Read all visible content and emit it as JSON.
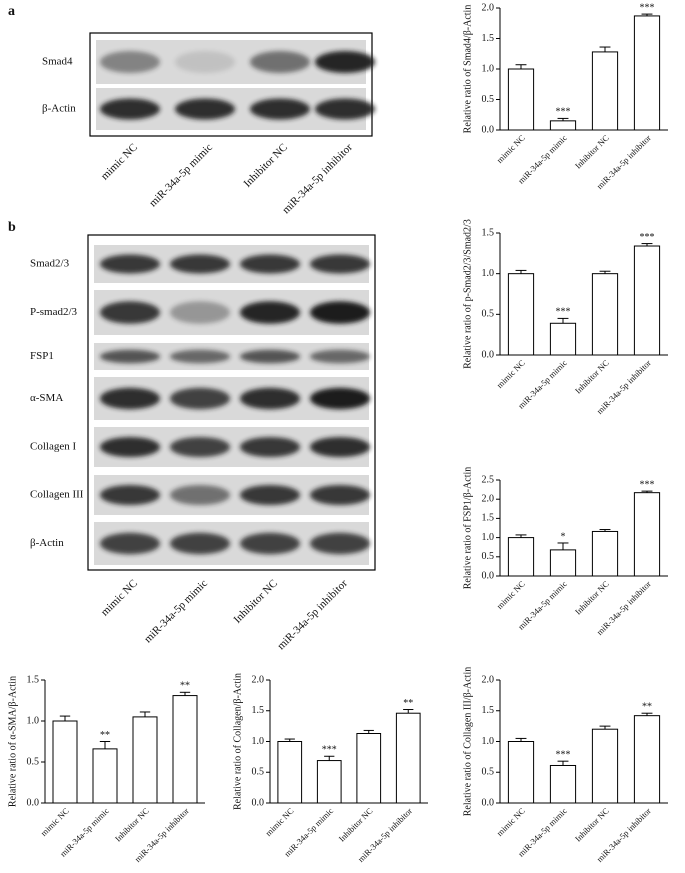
{
  "blots": [
    {
      "label": "a",
      "rows": [
        "Smad4",
        "β-Actin"
      ],
      "lanes": [
        "mimic NC",
        "miR-34a-5p mimic",
        "Inhibitor NC",
        "miR-34a-5p inhibitor"
      ]
    },
    {
      "label": "b",
      "rows": [
        "Smad2/3",
        "P-smad2/3",
        "FSP1",
        "α-SMA",
        "Collagen I",
        "Collagen III",
        "β-Actin"
      ],
      "lanes": [
        "mimic NC",
        "miR-34a-5p mimic",
        "Inhibitor NC",
        "miR-34a-5p inhibitor"
      ]
    }
  ],
  "chart_data": [
    {
      "type": "bar",
      "y_label": "Relative ratio of Smad4/β-Actin",
      "categories": [
        "mimic NC",
        "miR-34a-5p mimic",
        "Inhibitor NC",
        "miR-34a-5p inhibitor"
      ],
      "values": [
        1.0,
        0.15,
        1.28,
        1.87
      ],
      "errors": [
        0.07,
        0.04,
        0.08,
        0.03
      ],
      "significance": [
        null,
        "***",
        null,
        "***"
      ],
      "color": "#ffffff",
      "ylim": [
        0,
        2
      ],
      "yticks": [
        {
          "value": 0,
          "label": "0.0"
        },
        {
          "value": 0.5,
          "label": "0.5"
        },
        {
          "value": 1,
          "label": "1.0"
        },
        {
          "value": 1.5,
          "label": "1.5"
        },
        {
          "value": 2,
          "label": "2.0"
        }
      ]
    },
    {
      "type": "bar",
      "y_label": "Relative ratio of p-Smad2/3/Smad2/3",
      "categories": [
        "mimic NC",
        "miR-34a-5p mimic",
        "Inhibitor NC",
        "miR-34a-5p inhibitor"
      ],
      "values": [
        1.0,
        0.39,
        1.0,
        1.34
      ],
      "errors": [
        0.04,
        0.06,
        0.03,
        0.03
      ],
      "significance": [
        null,
        "***",
        null,
        "***"
      ],
      "color": "#ffffff",
      "ylim": [
        0,
        1.5
      ],
      "yticks": [
        {
          "value": 0,
          "label": "0.0"
        },
        {
          "value": 0.5,
          "label": "0.5"
        },
        {
          "value": 1,
          "label": "1.0"
        },
        {
          "value": 1.5,
          "label": "1.5"
        }
      ]
    },
    {
      "type": "bar",
      "y_label": "Relative ratio of FSP1/β-Actin",
      "categories": [
        "mimic NC",
        "miR-34a-5p mimic",
        "Inhibitor NC",
        "miR-34a-5p inhibitor"
      ],
      "values": [
        1.0,
        0.68,
        1.16,
        2.17
      ],
      "errors": [
        0.07,
        0.18,
        0.05,
        0.04
      ],
      "significance": [
        null,
        "*",
        null,
        "***"
      ],
      "color": "#ffffff",
      "ylim": [
        0,
        2.5
      ],
      "yticks": [
        {
          "value": 0,
          "label": "0.0"
        },
        {
          "value": 0.5,
          "label": "0.5"
        },
        {
          "value": 1,
          "label": "1.0"
        },
        {
          "value": 1.5,
          "label": "1.5"
        },
        {
          "value": 2,
          "label": "2.0"
        },
        {
          "value": 2.5,
          "label": "2.5"
        }
      ]
    },
    {
      "type": "bar",
      "y_label": "Relative ratio of α-SMA/β-Actin",
      "categories": [
        "mimic NC",
        "miR-34a-5p mimic",
        "Inhibitor NC",
        "miR-34a-5p inhibitor"
      ],
      "values": [
        1.0,
        0.66,
        1.05,
        1.31
      ],
      "errors": [
        0.06,
        0.09,
        0.06,
        0.04
      ],
      "significance": [
        null,
        "**",
        null,
        "**"
      ],
      "color": "#ffffff",
      "ylim": [
        0,
        1.5
      ],
      "yticks": [
        {
          "value": 0,
          "label": "0.0"
        },
        {
          "value": 0.5,
          "label": "0.5"
        },
        {
          "value": 1,
          "label": "1.0"
        },
        {
          "value": 1.5,
          "label": "1.5"
        }
      ]
    },
    {
      "type": "bar",
      "y_label": "Relative ratio of Collagen/β-Actin",
      "categories": [
        "mimic NC",
        "miR-34a-5p mimic",
        "Inhibitor NC",
        "miR-34a-5p inhibitor"
      ],
      "values": [
        1.0,
        0.69,
        1.13,
        1.46
      ],
      "errors": [
        0.04,
        0.07,
        0.05,
        0.06
      ],
      "significance": [
        null,
        "***",
        null,
        "**"
      ],
      "color": "#ffffff",
      "ylim": [
        0,
        2
      ],
      "yticks": [
        {
          "value": 0,
          "label": "0.0"
        },
        {
          "value": 0.5,
          "label": "0.5"
        },
        {
          "value": 1,
          "label": "1.0"
        },
        {
          "value": 1.5,
          "label": "1.5"
        },
        {
          "value": 2,
          "label": "2.0"
        }
      ]
    },
    {
      "type": "bar",
      "y_label": "Relative ratio of Collagen III/β-Actin",
      "categories": [
        "mimic NC",
        "miR-34a-5p mimic",
        "Inhibitor NC",
        "miR-34a-5p inhibitor"
      ],
      "values": [
        1.0,
        0.61,
        1.2,
        1.42
      ],
      "errors": [
        0.05,
        0.07,
        0.05,
        0.04
      ],
      "significance": [
        null,
        "***",
        null,
        "**"
      ],
      "color": "#ffffff",
      "ylim": [
        0,
        2
      ],
      "yticks": [
        {
          "value": 0,
          "label": "0.0"
        },
        {
          "value": 0.5,
          "label": "0.5"
        },
        {
          "value": 1,
          "label": "1.0"
        },
        {
          "value": 1.5,
          "label": "1.5"
        },
        {
          "value": 2,
          "label": "2.0"
        }
      ]
    }
  ]
}
